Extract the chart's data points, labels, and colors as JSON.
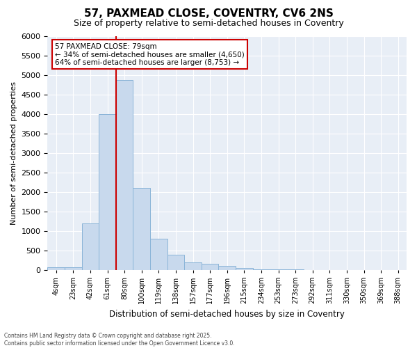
{
  "title1": "57, PAXMEAD CLOSE, COVENTRY, CV6 2NS",
  "title2": "Size of property relative to semi-detached houses in Coventry",
  "xlabel": "Distribution of semi-detached houses by size in Coventry",
  "ylabel": "Number of semi-detached properties",
  "categories": [
    "4sqm",
    "23sqm",
    "42sqm",
    "61sqm",
    "80sqm",
    "100sqm",
    "119sqm",
    "138sqm",
    "157sqm",
    "177sqm",
    "196sqm",
    "215sqm",
    "234sqm",
    "253sqm",
    "273sqm",
    "292sqm",
    "311sqm",
    "330sqm",
    "350sqm",
    "369sqm",
    "388sqm"
  ],
  "values": [
    70,
    70,
    1200,
    4000,
    4870,
    2100,
    800,
    390,
    200,
    155,
    100,
    50,
    20,
    10,
    5,
    3,
    2,
    1,
    1,
    0,
    0
  ],
  "bar_color": "#c8d9ed",
  "bar_edge_color": "#8ab4d8",
  "vline_index": 4,
  "vline_color": "#cc0000",
  "ylim": [
    0,
    6000
  ],
  "yticks": [
    0,
    500,
    1000,
    1500,
    2000,
    2500,
    3000,
    3500,
    4000,
    4500,
    5000,
    5500,
    6000
  ],
  "annotation_title": "57 PAXMEAD CLOSE: 79sqm",
  "annotation_line1": "← 34% of semi-detached houses are smaller (4,650)",
  "annotation_line2": "64% of semi-detached houses are larger (8,753) →",
  "annotation_box_color": "#cc0000",
  "footer1": "Contains HM Land Registry data © Crown copyright and database right 2025.",
  "footer2": "Contains public sector information licensed under the Open Government Licence v3.0.",
  "plot_bg_color": "#e8eef6",
  "title1_fontsize": 11,
  "title2_fontsize": 9,
  "ylabel_text": "Number of semi-detached properties"
}
